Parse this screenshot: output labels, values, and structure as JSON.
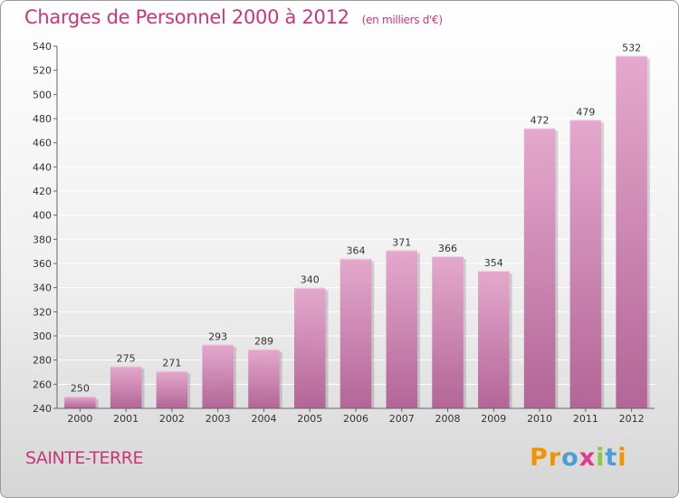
{
  "header": {
    "title": "Charges de Personnel 2000 à 2012",
    "subtitle": "(en milliers d'€)"
  },
  "footer": {
    "place": "SAINTE-TERRE",
    "logo": {
      "letters": [
        "P",
        "r",
        "o",
        "x",
        "i",
        "t",
        "i"
      ]
    }
  },
  "colors": {
    "title": "#c83779",
    "bar_top": "#e5a9cd",
    "bar_bottom": "#b36597",
    "grid": "#ffffff",
    "logo_letters": [
      "#f29400",
      "#f29400",
      "#4a9fd5",
      "#e03a8c",
      "#8dc63f",
      "#4a9fd5",
      "#f29400"
    ]
  },
  "chart_data": {
    "type": "bar",
    "title": "Charges de Personnel 2000 à 2012",
    "subtitle": "(en milliers d'€)",
    "categories": [
      "2000",
      "2001",
      "2002",
      "2003",
      "2004",
      "2005",
      "2006",
      "2007",
      "2008",
      "2009",
      "2010",
      "2011",
      "2012"
    ],
    "values": [
      250,
      275,
      271,
      293,
      289,
      340,
      364,
      371,
      366,
      354,
      472,
      479,
      532
    ],
    "ylim": [
      240,
      540
    ],
    "yticks": [
      240,
      260,
      280,
      300,
      320,
      340,
      360,
      380,
      400,
      420,
      440,
      460,
      480,
      500,
      520,
      540
    ],
    "grid": true,
    "data_labels": true
  }
}
